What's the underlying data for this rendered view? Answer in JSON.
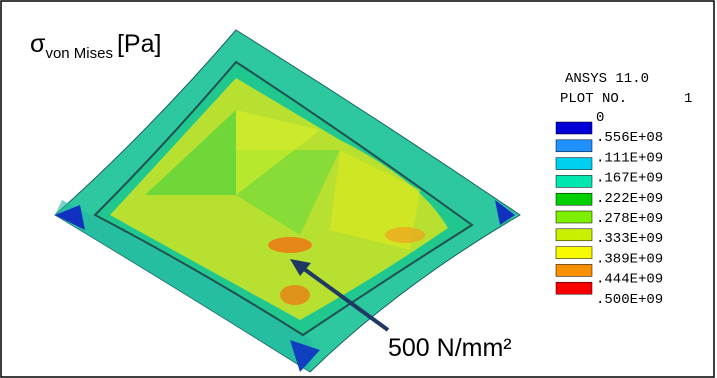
{
  "title": {
    "symbol": "σ",
    "subscript": "von Mises",
    "unit": "[Pa]"
  },
  "legend": {
    "software": "ANSYS 11.0",
    "plot_label": "PLOT NO.",
    "plot_number": "1",
    "levels": [
      "0",
      ".556E+08",
      ".111E+09",
      ".167E+09",
      ".222E+09",
      ".278E+09",
      ".333E+09",
      ".389E+09",
      ".444E+09",
      ".500E+09"
    ],
    "colors": [
      "#0000d8",
      "#1e90ff",
      "#00d0f0",
      "#00e8b0",
      "#00d000",
      "#7cf000",
      "#c8f000",
      "#f8f800",
      "#f89000",
      "#f80000"
    ]
  },
  "annotation": "500 N/mm²"
}
